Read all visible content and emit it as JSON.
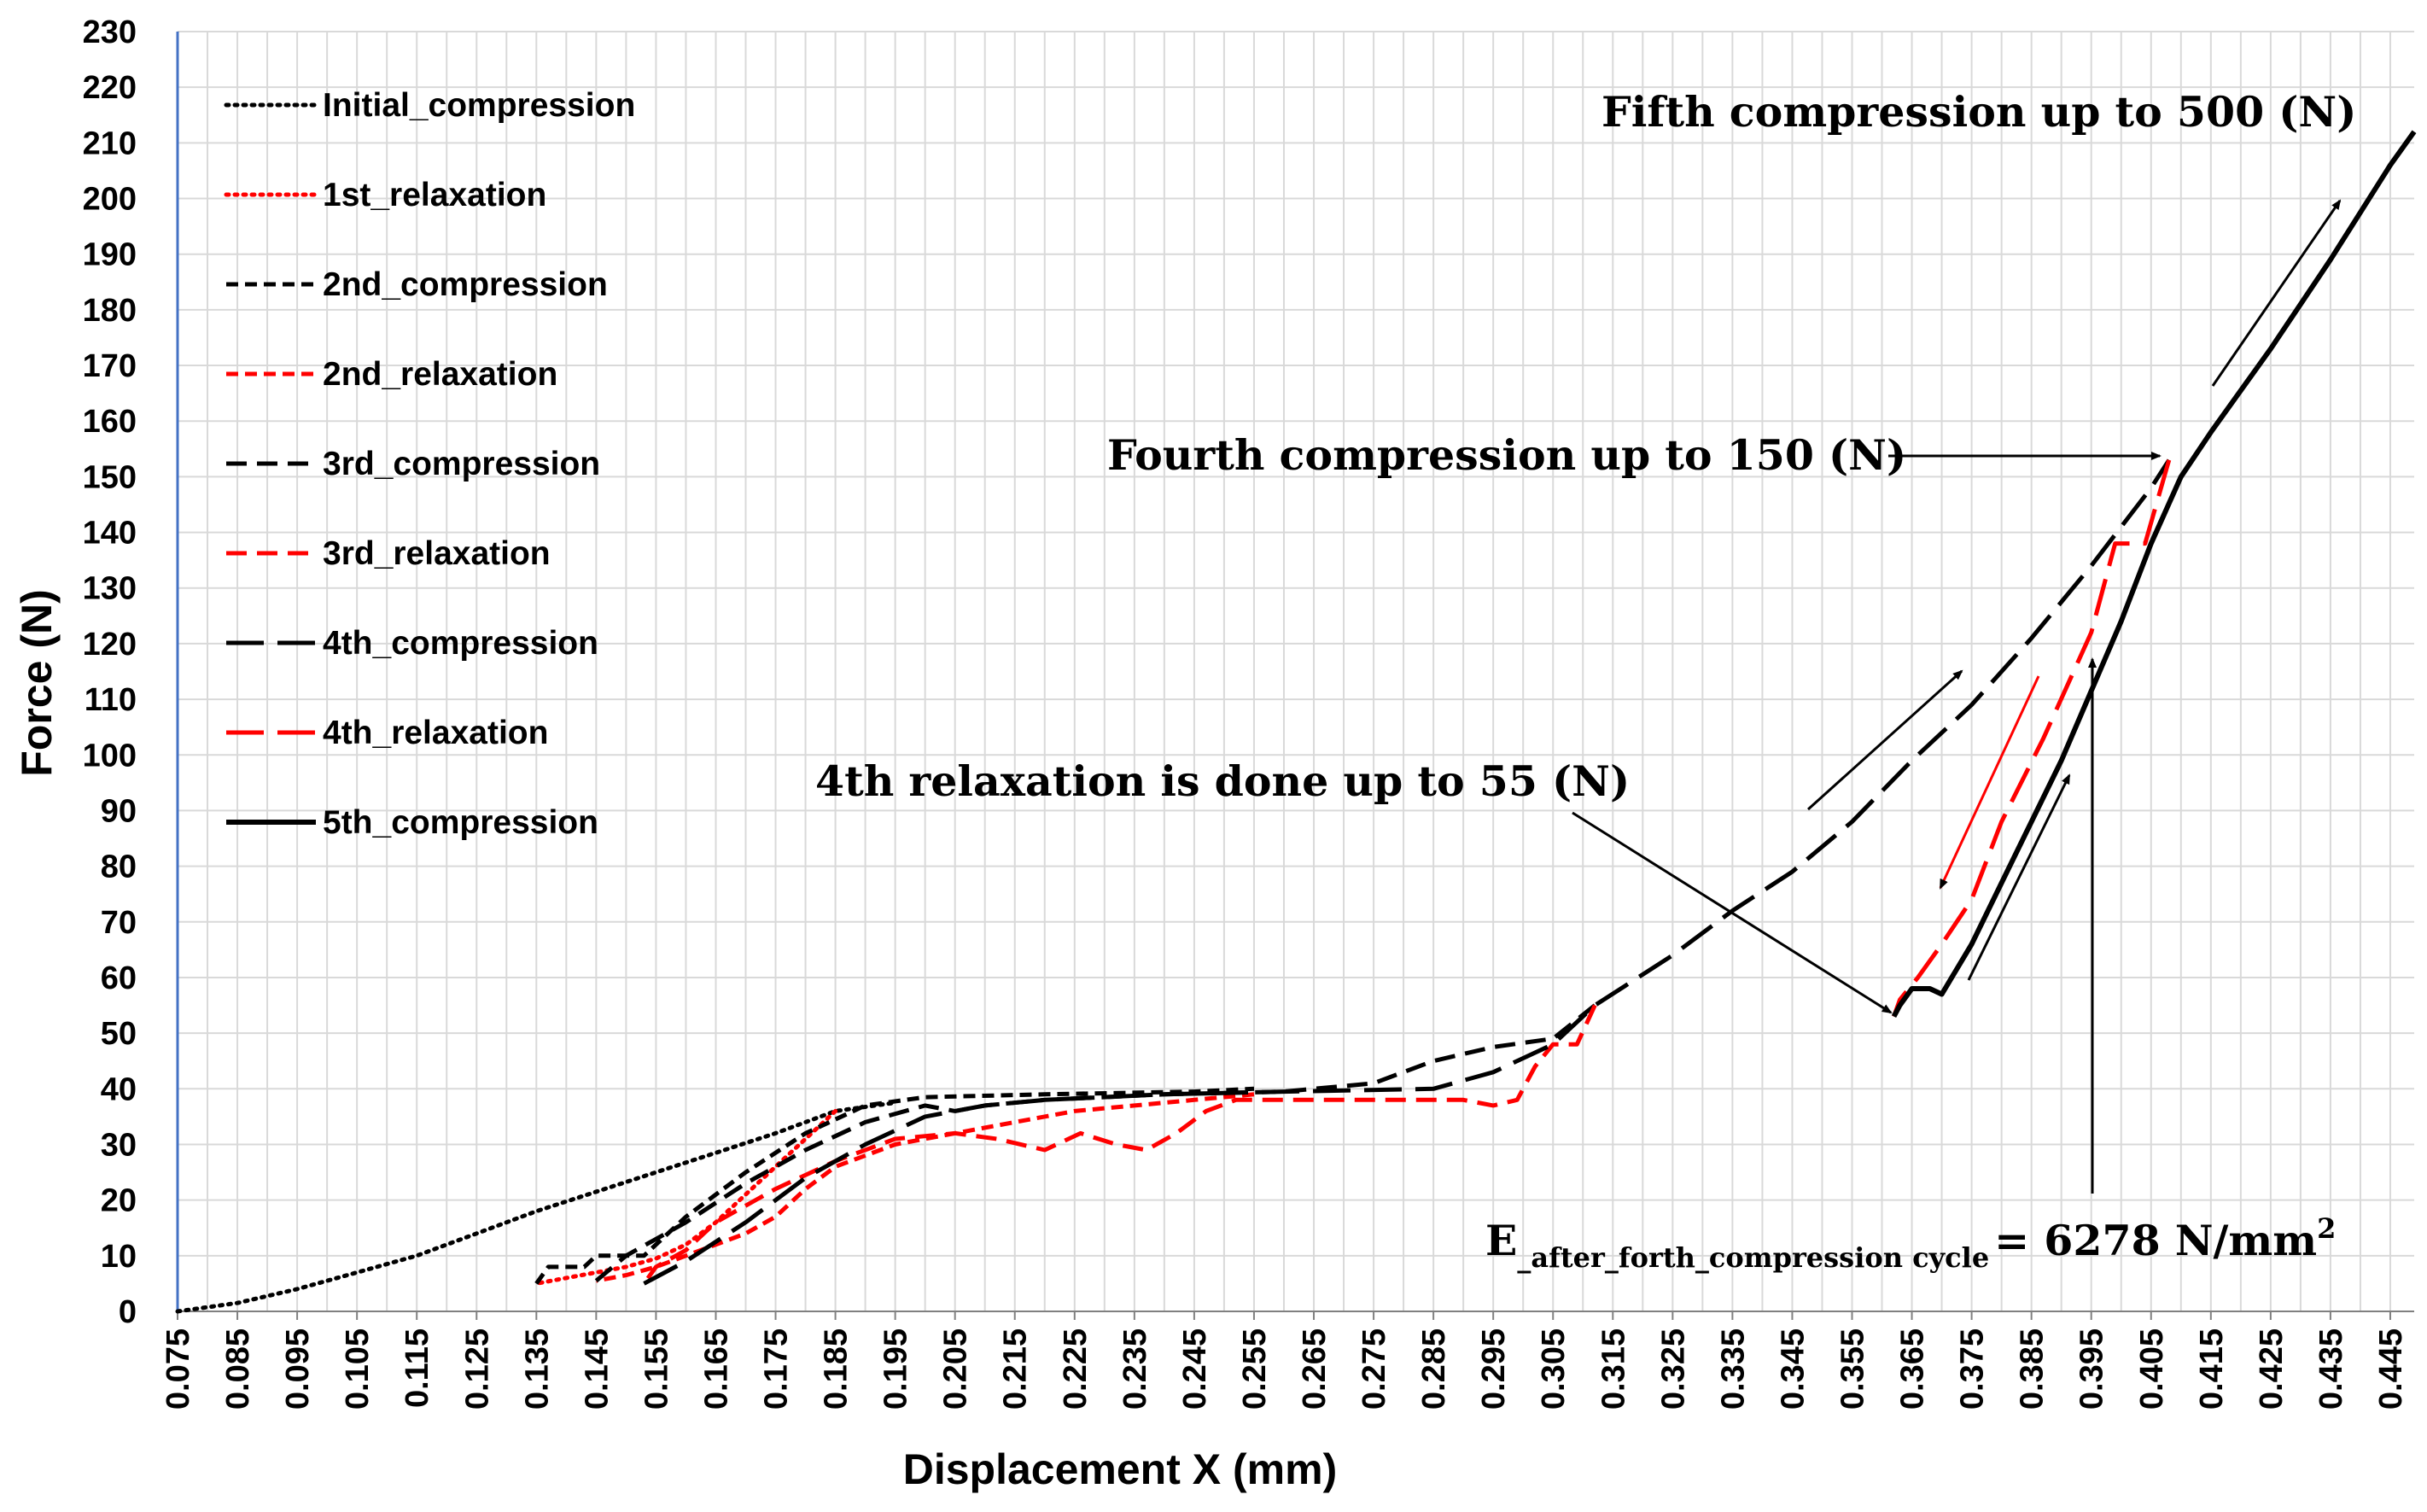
{
  "chart_data": {
    "type": "line",
    "title": "",
    "xlabel": "Displacement X (mm)",
    "ylabel": "Force (N)",
    "xlim": [
      0.075,
      0.449
    ],
    "ylim": [
      0,
      230
    ],
    "x_ticks": [
      "0.075",
      "0.085",
      "0.095",
      "0.105",
      "0.115",
      "0.125",
      "0.135",
      "0.145",
      "0.155",
      "0.165",
      "0.175",
      "0.185",
      "0.195",
      "0.205",
      "0.215",
      "0.225",
      "0.235",
      "0.245",
      "0.255",
      "0.265",
      "0.275",
      "0.285",
      "0.295",
      "0.305",
      "0.315",
      "0.325",
      "0.335",
      "0.345",
      "0.355",
      "0.365",
      "0.375",
      "0.385",
      "0.395",
      "0.405",
      "0.415",
      "0.425",
      "0.435",
      "0.445"
    ],
    "y_ticks": [
      "0",
      "10",
      "20",
      "30",
      "40",
      "50",
      "60",
      "70",
      "80",
      "90",
      "100",
      "110",
      "120",
      "130",
      "140",
      "150",
      "160",
      "170",
      "180",
      "190",
      "200",
      "210",
      "220",
      "230"
    ],
    "grid": true,
    "legend_position": "top-left",
    "series": [
      {
        "name": "Initial_compression",
        "color": "#000000",
        "style": "dotted",
        "points": [
          [
            0.075,
            0
          ],
          [
            0.085,
            1.5
          ],
          [
            0.095,
            4
          ],
          [
            0.105,
            7
          ],
          [
            0.115,
            10
          ],
          [
            0.125,
            14
          ],
          [
            0.135,
            18
          ],
          [
            0.145,
            21.5
          ],
          [
            0.155,
            25
          ],
          [
            0.165,
            28.5
          ],
          [
            0.175,
            32
          ],
          [
            0.185,
            36
          ],
          [
            0.195,
            37.5
          ]
        ]
      },
      {
        "name": "1st_relaxation",
        "color": "#ff0000",
        "style": "dotted",
        "points": [
          [
            0.185,
            36
          ],
          [
            0.18,
            31
          ],
          [
            0.175,
            26
          ],
          [
            0.17,
            21
          ],
          [
            0.165,
            16
          ],
          [
            0.16,
            12
          ],
          [
            0.155,
            9.5
          ],
          [
            0.15,
            8
          ],
          [
            0.145,
            7
          ],
          [
            0.14,
            6
          ],
          [
            0.135,
            5
          ]
        ]
      },
      {
        "name": "2nd_compression",
        "color": "#000000",
        "style": "short-dash",
        "points": [
          [
            0.135,
            5
          ],
          [
            0.137,
            8
          ],
          [
            0.143,
            8
          ],
          [
            0.145,
            10
          ],
          [
            0.153,
            10
          ],
          [
            0.16,
            17
          ],
          [
            0.17,
            25
          ],
          [
            0.18,
            32
          ],
          [
            0.19,
            37
          ],
          [
            0.2,
            38.5
          ],
          [
            0.22,
            39
          ],
          [
            0.245,
            39.5
          ],
          [
            0.255,
            40
          ]
        ]
      },
      {
        "name": "2nd_relaxation",
        "color": "#ff0000",
        "style": "short-dash",
        "points": [
          [
            0.255,
            39
          ],
          [
            0.245,
            38
          ],
          [
            0.235,
            37
          ],
          [
            0.225,
            36
          ],
          [
            0.215,
            34
          ],
          [
            0.205,
            32
          ],
          [
            0.195,
            30
          ],
          [
            0.185,
            26
          ],
          [
            0.18,
            22
          ],
          [
            0.175,
            17
          ],
          [
            0.17,
            14
          ],
          [
            0.165,
            12
          ],
          [
            0.16,
            10
          ],
          [
            0.155,
            8
          ],
          [
            0.15,
            6.5
          ],
          [
            0.145,
            5.5
          ]
        ]
      },
      {
        "name": "3rd_compression",
        "color": "#000000",
        "style": "medium-dash",
        "points": [
          [
            0.145,
            5.5
          ],
          [
            0.15,
            10
          ],
          [
            0.16,
            16
          ],
          [
            0.17,
            23
          ],
          [
            0.18,
            29
          ],
          [
            0.19,
            34
          ],
          [
            0.2,
            37
          ],
          [
            0.205,
            36
          ],
          [
            0.21,
            37
          ],
          [
            0.22,
            38
          ],
          [
            0.24,
            39
          ],
          [
            0.26,
            39.5
          ],
          [
            0.275,
            41
          ],
          [
            0.285,
            45
          ],
          [
            0.295,
            47.5
          ],
          [
            0.305,
            49
          ],
          [
            0.312,
            55
          ]
        ]
      },
      {
        "name": "3rd_relaxation",
        "color": "#ff0000",
        "style": "medium-dash",
        "points": [
          [
            0.312,
            55
          ],
          [
            0.309,
            48
          ],
          [
            0.305,
            48
          ],
          [
            0.302,
            44
          ],
          [
            0.299,
            38
          ],
          [
            0.295,
            37
          ],
          [
            0.29,
            38
          ],
          [
            0.28,
            38
          ],
          [
            0.26,
            38
          ],
          [
            0.252,
            38
          ],
          [
            0.247,
            36
          ],
          [
            0.242,
            32
          ],
          [
            0.237,
            29
          ],
          [
            0.232,
            30
          ],
          [
            0.226,
            32
          ],
          [
            0.22,
            29
          ],
          [
            0.212,
            31
          ],
          [
            0.205,
            32
          ],
          [
            0.195,
            31
          ],
          [
            0.185,
            27
          ],
          [
            0.175,
            22
          ],
          [
            0.165,
            16
          ],
          [
            0.16,
            11
          ],
          [
            0.155,
            8
          ],
          [
            0.153,
            5
          ]
        ]
      },
      {
        "name": "4th_compression",
        "color": "#000000",
        "style": "long-dash",
        "points": [
          [
            0.153,
            5
          ],
          [
            0.16,
            9
          ],
          [
            0.17,
            16
          ],
          [
            0.18,
            24
          ],
          [
            0.19,
            30
          ],
          [
            0.2,
            35
          ],
          [
            0.21,
            37
          ],
          [
            0.22,
            38
          ],
          [
            0.24,
            39
          ],
          [
            0.26,
            39.5
          ],
          [
            0.285,
            40
          ],
          [
            0.295,
            43
          ],
          [
            0.305,
            48
          ],
          [
            0.312,
            55
          ],
          [
            0.325,
            64
          ],
          [
            0.335,
            72
          ],
          [
            0.345,
            79
          ],
          [
            0.355,
            88
          ],
          [
            0.365,
            99
          ],
          [
            0.375,
            109
          ],
          [
            0.385,
            121
          ],
          [
            0.395,
            134
          ],
          [
            0.405,
            148
          ],
          [
            0.408,
            153
          ]
        ]
      },
      {
        "name": "4th_relaxation",
        "color": "#ff0000",
        "style": "long-dash",
        "points": [
          [
            0.408,
            153
          ],
          [
            0.404,
            138
          ],
          [
            0.399,
            138
          ],
          [
            0.395,
            122
          ],
          [
            0.387,
            103
          ],
          [
            0.38,
            88
          ],
          [
            0.375,
            74
          ],
          [
            0.37,
            66
          ],
          [
            0.366,
            60
          ],
          [
            0.363,
            56
          ],
          [
            0.362,
            53
          ]
        ]
      },
      {
        "name": "5th_compression",
        "color": "#000000",
        "style": "solid",
        "points": [
          [
            0.362,
            53
          ],
          [
            0.363,
            55
          ],
          [
            0.365,
            58
          ],
          [
            0.368,
            58
          ],
          [
            0.37,
            57
          ],
          [
            0.375,
            66
          ],
          [
            0.38,
            77
          ],
          [
            0.39,
            99
          ],
          [
            0.4,
            124
          ],
          [
            0.405,
            138
          ],
          [
            0.41,
            150
          ],
          [
            0.415,
            158
          ],
          [
            0.425,
            173
          ],
          [
            0.435,
            189
          ],
          [
            0.445,
            206
          ],
          [
            0.449,
            212
          ]
        ]
      }
    ],
    "annotations": [
      {
        "text": "Fifth compression up to 500 (N)",
        "x": 0.375,
        "y": 213
      },
      {
        "text": "Fourth compression up to 150 (N)",
        "x": 0.227,
        "y": 152
      },
      {
        "text": "4th relaxation is done up to 55 (N)",
        "x": 0.178,
        "y": 94
      },
      {
        "text": "E",
        "sub": "_after_forth_compression cycle",
        "suffix": "= 6278 N/mm",
        "sup": "2",
        "x": 0.287,
        "y": 10
      }
    ]
  }
}
